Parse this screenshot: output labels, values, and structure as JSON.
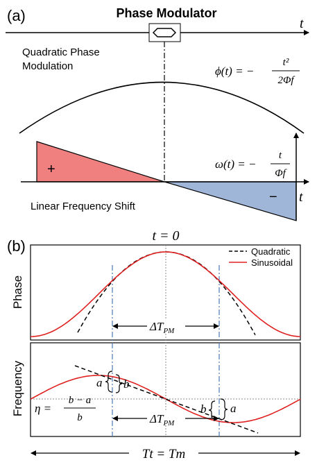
{
  "panel_a": {
    "label": "(a)",
    "title": "Phase Modulator",
    "time_axis_label": "t",
    "quadratic_label_line1": "Quadratic Phase",
    "quadratic_label_line2": "Modulation",
    "phase_eq": {
      "lhs": "ϕ(t) = −",
      "numerator": "t²",
      "denominator": "2Φf"
    },
    "freq_eq": {
      "lhs": "ω(t) = −",
      "numerator": "t",
      "denominator": "Φf"
    },
    "plus_sign": "+",
    "minus_sign": "−",
    "freq_shift_label": "Linear Frequency Shift",
    "colors": {
      "positive_fill": "#f08080",
      "negative_fill": "#9fb6d8"
    }
  },
  "panel_b": {
    "label": "(b)",
    "t0_label": "t = 0",
    "legend": {
      "quadratic": "Quadratic",
      "sinusoidal": "Sinusoidal"
    },
    "phase_axis_label": "Phase",
    "frequency_axis_label": "Frequency",
    "delta_tpm_top": "ΔT",
    "delta_tpm_top_sub": "PM",
    "delta_tpm_bottom": "ΔT",
    "delta_tpm_bottom_sub": "PM",
    "brace_left_a": "a",
    "brace_left_b": "b",
    "brace_right_a": "a",
    "brace_right_b": "b",
    "eta_eq": {
      "lhs": "η =",
      "numerator": "b − a",
      "denominator": "b"
    },
    "period_label": "Tt = Tm",
    "colors": {
      "sinusoidal": "#e02020",
      "quadratic": "#000000",
      "dashdot": "#4a78b8"
    }
  }
}
